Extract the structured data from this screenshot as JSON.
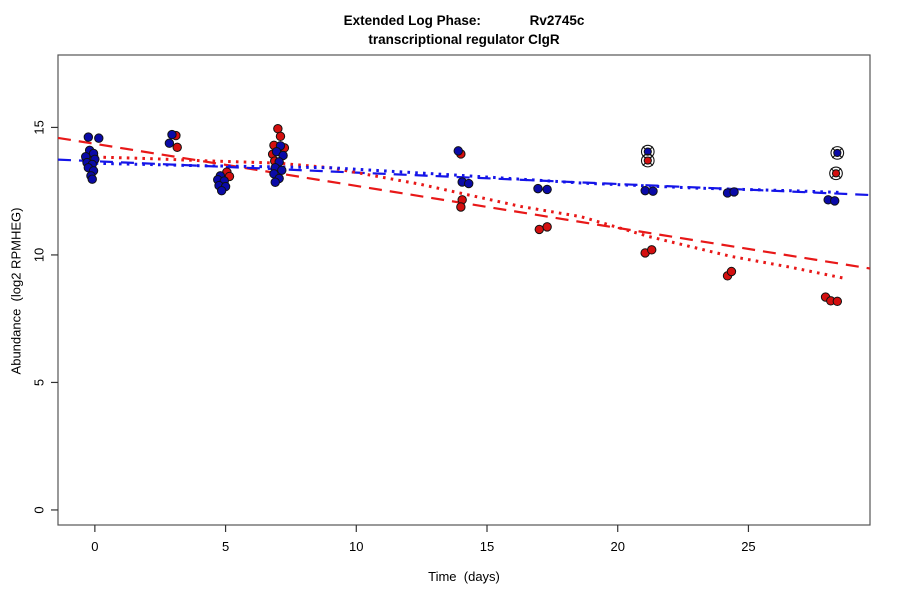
{
  "title": {
    "line1": "Extended Log Phase:             Rv2745c",
    "line2": "transcriptional regulator ClgR"
  },
  "chart_data": {
    "type": "scatter",
    "xlabel": "Time  (days)",
    "ylabel": "Abundance  (log2 RPMHEG)",
    "xlim": [
      -1.41,
      29.65
    ],
    "ylim": [
      -0.59,
      17.84
    ],
    "x_ticks": [
      0,
      5,
      10,
      15,
      20,
      25
    ],
    "y_ticks": [
      0,
      5,
      10,
      15
    ],
    "grid": false,
    "legend": "none",
    "colors": {
      "blue_point": "#0a0aa8",
      "red_point": "#d40f0f",
      "blue_line": "#1515e8",
      "red_line": "#e81818",
      "marker_edge": "#111111",
      "box": "#555555"
    },
    "series": [
      {
        "name": "red-linear-fit",
        "type": "line",
        "style": "dashed",
        "color": "#e81818",
        "points": [
          [
            -1.41,
            14.59
          ],
          [
            29.65,
            9.47
          ]
        ]
      },
      {
        "name": "blue-linear-fit",
        "type": "line",
        "style": "dashed",
        "color": "#1515e8",
        "points": [
          [
            -1.41,
            13.74
          ],
          [
            29.65,
            12.35
          ]
        ]
      },
      {
        "name": "red-loess-fit",
        "type": "line",
        "style": "dotted",
        "color": "#e81818",
        "points": [
          [
            -0.27,
            13.85
          ],
          [
            2,
            13.78
          ],
          [
            4,
            13.7
          ],
          [
            7,
            13.6
          ],
          [
            9,
            13.42
          ],
          [
            12.4,
            12.78
          ],
          [
            16.3,
            11.9
          ],
          [
            18.6,
            11.5
          ],
          [
            21.2,
            10.72
          ],
          [
            24.3,
            9.95
          ],
          [
            26.6,
            9.52
          ],
          [
            28.6,
            9.1
          ]
        ]
      },
      {
        "name": "blue-loess-fit",
        "type": "line",
        "style": "dotted",
        "color": "#1515e8",
        "points": [
          [
            -0.27,
            13.6
          ],
          [
            4,
            13.5
          ],
          [
            9,
            13.42
          ],
          [
            14,
            13.12
          ],
          [
            18.6,
            12.82
          ],
          [
            23,
            12.62
          ],
          [
            26.6,
            12.52
          ],
          [
            28.6,
            12.45
          ]
        ]
      },
      {
        "name": "red-samples",
        "type": "points",
        "marker": "circle",
        "color": "#d40f0f",
        "points": [
          [
            -0.05,
            13.9
          ],
          [
            3.1,
            14.68
          ],
          [
            3.15,
            14.22
          ],
          [
            5.05,
            13.25
          ],
          [
            5.15,
            13.08
          ],
          [
            7.0,
            14.95
          ],
          [
            7.1,
            14.65
          ],
          [
            6.85,
            14.3
          ],
          [
            7.25,
            14.2
          ],
          [
            6.8,
            13.95
          ],
          [
            6.88,
            13.68
          ],
          [
            14.0,
            13.96
          ],
          [
            14.05,
            12.16
          ],
          [
            14.0,
            11.88
          ],
          [
            17.0,
            11.0
          ],
          [
            17.3,
            11.1
          ],
          [
            21.05,
            10.08
          ],
          [
            21.3,
            10.2
          ],
          [
            24.2,
            9.18
          ],
          [
            24.35,
            9.35
          ],
          [
            27.95,
            8.35
          ],
          [
            28.15,
            8.2
          ],
          [
            28.4,
            8.18
          ]
        ]
      },
      {
        "name": "blue-samples",
        "type": "points",
        "marker": "circle",
        "color": "#0a0aa8",
        "points": [
          [
            -0.25,
            14.62
          ],
          [
            0.15,
            14.58
          ],
          [
            -0.2,
            14.1
          ],
          [
            -0.05,
            13.98
          ],
          [
            -0.35,
            13.85
          ],
          [
            0.0,
            13.75
          ],
          [
            -0.3,
            13.62
          ],
          [
            -0.1,
            13.55
          ],
          [
            -0.25,
            13.42
          ],
          [
            -0.05,
            13.3
          ],
          [
            -0.15,
            13.1
          ],
          [
            -0.1,
            12.97
          ],
          [
            2.95,
            14.72
          ],
          [
            2.85,
            14.38
          ],
          [
            4.8,
            13.1
          ],
          [
            4.7,
            12.95
          ],
          [
            4.95,
            12.9
          ],
          [
            4.75,
            12.72
          ],
          [
            5.0,
            12.68
          ],
          [
            4.85,
            12.52
          ],
          [
            7.1,
            14.28
          ],
          [
            6.95,
            14.05
          ],
          [
            7.2,
            13.9
          ],
          [
            7.05,
            13.65
          ],
          [
            6.9,
            13.42
          ],
          [
            7.15,
            13.32
          ],
          [
            6.85,
            13.18
          ],
          [
            7.05,
            13.0
          ],
          [
            6.9,
            12.85
          ],
          [
            13.9,
            14.08
          ],
          [
            14.05,
            12.86
          ],
          [
            14.3,
            12.8
          ],
          [
            16.95,
            12.6
          ],
          [
            17.3,
            12.57
          ],
          [
            21.05,
            12.52
          ],
          [
            21.35,
            12.5
          ],
          [
            24.2,
            12.43
          ],
          [
            24.45,
            12.47
          ],
          [
            28.05,
            12.16
          ],
          [
            28.3,
            12.12
          ]
        ]
      },
      {
        "name": "blue-outliers",
        "type": "points",
        "marker": "circle-x",
        "color": "#0a0aa8",
        "points": [
          [
            21.15,
            14.05
          ],
          [
            28.4,
            14.0
          ]
        ]
      },
      {
        "name": "red-outliers",
        "type": "points",
        "marker": "circle-x",
        "color": "#d40f0f",
        "points": [
          [
            21.15,
            13.7
          ],
          [
            28.35,
            13.2
          ]
        ]
      }
    ]
  }
}
